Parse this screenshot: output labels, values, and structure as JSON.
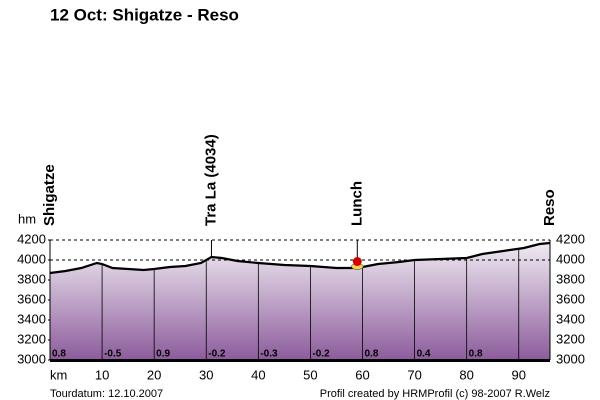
{
  "chart_data": {
    "type": "area",
    "title": "12 Oct: Shigatze - Reso",
    "y_label": "hm",
    "x_label": "km",
    "x": [
      0,
      3,
      6,
      9,
      10,
      12,
      15,
      18,
      20,
      23,
      26,
      29,
      31,
      33,
      36,
      40,
      45,
      50,
      55,
      58,
      60,
      63,
      67,
      70,
      75,
      80,
      83,
      87,
      91,
      94,
      96
    ],
    "values": [
      3870,
      3890,
      3920,
      3970,
      3960,
      3920,
      3910,
      3900,
      3910,
      3930,
      3940,
      3970,
      4030,
      4020,
      3990,
      3970,
      3950,
      3940,
      3920,
      3920,
      3930,
      3960,
      3980,
      4000,
      4010,
      4020,
      4060,
      4090,
      4120,
      4160,
      4170
    ],
    "xlim": [
      0,
      96
    ],
    "ylim": [
      3000,
      4200
    ],
    "xticks": [
      10,
      20,
      30,
      40,
      50,
      60,
      70,
      80,
      90
    ],
    "yticks": [
      3000,
      3200,
      3400,
      3600,
      3800,
      4000,
      4200
    ],
    "dashed_levels": [
      4000,
      4200
    ],
    "waypoints": [
      {
        "x": 0,
        "label": "Shigatze"
      },
      {
        "x": 31,
        "label": "Tra La (4034)"
      },
      {
        "x": 59,
        "label": "Lunch"
      },
      {
        "x": 96,
        "label": "Reso"
      }
    ],
    "gradients": [
      {
        "x": 0,
        "value": 0.8
      },
      {
        "x": 10,
        "value": -0.5
      },
      {
        "x": 20,
        "value": 0.9
      },
      {
        "x": 30,
        "value": -0.2
      },
      {
        "x": 40,
        "value": -0.3
      },
      {
        "x": 50,
        "value": -0.2
      },
      {
        "x": 60,
        "value": 0.8
      },
      {
        "x": 70,
        "value": 0.4
      },
      {
        "x": 80,
        "value": 0.8
      }
    ],
    "footer_left": "Tourdatum: 12.10.2007",
    "footer_right": "Profil created by HRMProfil (c) 98-2007 R.Welz"
  }
}
